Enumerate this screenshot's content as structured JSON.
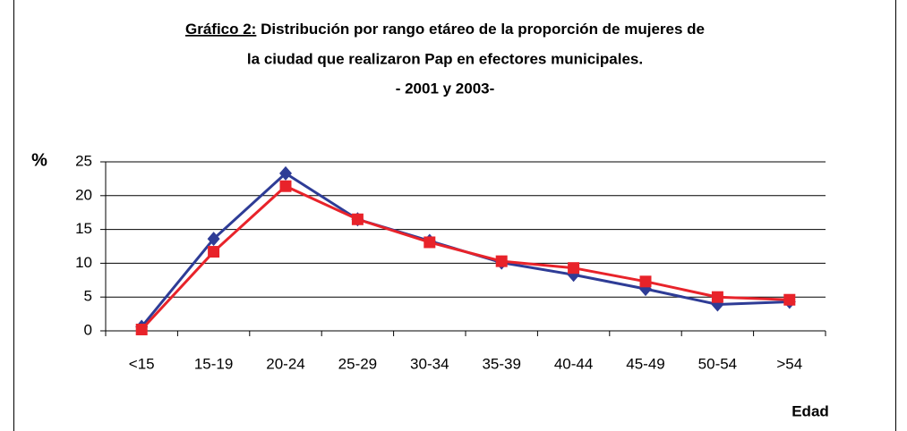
{
  "chart_data": {
    "type": "line",
    "title_prefix": "Gráfico 2:",
    "title_lines": [
      "Distribución por rango etáreo de la proporción de mujeres de",
      "la ciudad que realizaron Pap en efectores municipales.",
      "- 2001 y 2003-"
    ],
    "ylabel": "%",
    "xlabel": "Edad",
    "categories": [
      "<15",
      "15-19",
      "20-24",
      "25-29",
      "30-34",
      "35-39",
      "40-44",
      "45-49",
      "50-54",
      ">54"
    ],
    "series": [
      {
        "color": "#2e3c96",
        "marker": "diamond",
        "values": [
          0.6,
          13.6,
          23.3,
          16.5,
          13.3,
          10.1,
          8.3,
          6.2,
          3.9,
          4.3
        ]
      },
      {
        "color": "#e8232a",
        "marker": "square",
        "values": [
          0.2,
          11.7,
          21.4,
          16.5,
          13.1,
          10.3,
          9.3,
          7.3,
          5.0,
          4.6
        ]
      }
    ],
    "ylim": [
      0,
      25
    ],
    "yticks": [
      0,
      5,
      10,
      15,
      20,
      25
    ],
    "grid": true
  }
}
